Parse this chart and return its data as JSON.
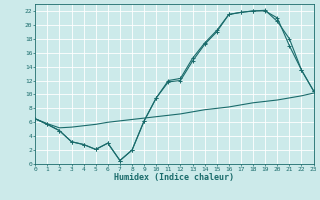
{
  "xlabel": "Humidex (Indice chaleur)",
  "bg_color": "#cceaea",
  "grid_color": "#b8d8d8",
  "line_color": "#1a6b6b",
  "xlim": [
    0,
    23
  ],
  "ylim": [
    0,
    23
  ],
  "xticks": [
    0,
    1,
    2,
    3,
    4,
    5,
    6,
    7,
    8,
    9,
    10,
    11,
    12,
    13,
    14,
    15,
    16,
    17,
    18,
    19,
    20,
    21,
    22,
    23
  ],
  "yticks": [
    0,
    2,
    4,
    6,
    8,
    10,
    12,
    14,
    16,
    18,
    20,
    22
  ],
  "line1_x": [
    0,
    1,
    2,
    3,
    4,
    5,
    6,
    7,
    8,
    9,
    10,
    11,
    12,
    13,
    14,
    15,
    16,
    17,
    18,
    19,
    20,
    21,
    22,
    23
  ],
  "line1_y": [
    6.5,
    5.7,
    4.8,
    3.2,
    2.8,
    2.1,
    3.0,
    0.5,
    2.0,
    6.2,
    9.5,
    12.0,
    12.3,
    15.2,
    17.4,
    19.2,
    21.5,
    21.8,
    22.0,
    22.1,
    20.5,
    18.0,
    13.5,
    10.5
  ],
  "line2_x": [
    0,
    1,
    2,
    3,
    4,
    5,
    6,
    7,
    8,
    9,
    10,
    11,
    12,
    13,
    14,
    15,
    16,
    17,
    18,
    19,
    20,
    21,
    22,
    23
  ],
  "line2_y": [
    6.5,
    5.7,
    4.8,
    3.2,
    2.8,
    2.1,
    3.0,
    0.5,
    2.0,
    6.2,
    9.5,
    11.8,
    12.0,
    14.8,
    17.2,
    19.0,
    21.5,
    21.8,
    22.0,
    22.0,
    21.0,
    17.0,
    13.5,
    10.5
  ],
  "line3_x": [
    0,
    1,
    2,
    3,
    4,
    5,
    6,
    7,
    8,
    9,
    10,
    11,
    12,
    13,
    14,
    15,
    16,
    17,
    18,
    19,
    20,
    21,
    22,
    23
  ],
  "line3_y": [
    6.5,
    5.8,
    5.2,
    5.3,
    5.5,
    5.7,
    6.0,
    6.2,
    6.4,
    6.6,
    6.8,
    7.0,
    7.2,
    7.5,
    7.8,
    8.0,
    8.2,
    8.5,
    8.8,
    9.0,
    9.2,
    9.5,
    9.8,
    10.2
  ]
}
